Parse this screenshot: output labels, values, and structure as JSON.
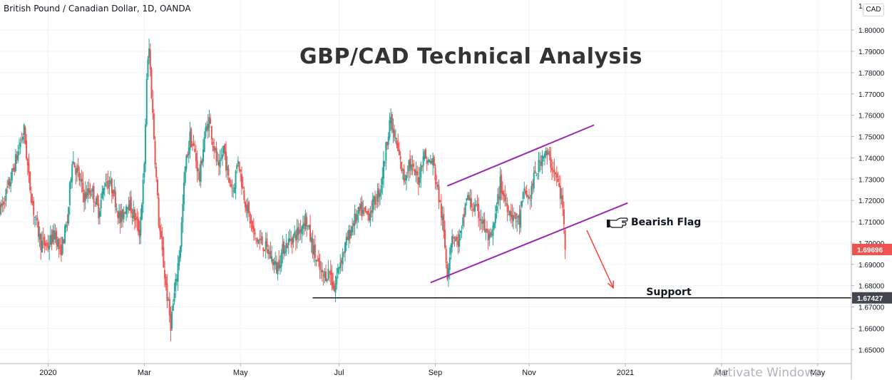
{
  "header": {
    "symbol_label": "British Pound / Canadian Dollar, 1D, OANDA",
    "currency_badge": "CAD",
    "axis_top_partial": "1."
  },
  "watermark": "Activate Windows",
  "colors": {
    "up": "#26a69a",
    "down": "#ef5350",
    "channel": "#9c27b0",
    "support": "#131722",
    "last_price_tag": "#ef5350",
    "support_tag": "#434651",
    "arrow": "#f44336"
  },
  "chart_data": {
    "type": "candlestick",
    "title": "GBP/CAD Technical Analysis",
    "y_ticks": [
      "1.80000",
      "1.79000",
      "1.78000",
      "1.77000",
      "1.76000",
      "1.75000",
      "1.74000",
      "1.73000",
      "1.72000",
      "1.71000",
      "1.70000",
      "1.69000",
      "1.68000",
      "1.67000",
      "1.66000",
      "1.65000"
    ],
    "x_ticks": [
      {
        "label": "2020",
        "x": 0
      },
      {
        "label": "Mar",
        "x": 40
      },
      {
        "label": "May",
        "x": 80
      },
      {
        "label": "Jul",
        "x": 121
      },
      {
        "label": "Sep",
        "x": 161
      },
      {
        "label": "Nov",
        "x": 200
      },
      {
        "label": "2021",
        "x": 240
      },
      {
        "label": "Mar",
        "x": 280
      },
      {
        "label": "May",
        "x": 320
      }
    ],
    "ylim": [
      1.6434,
      1.8141
    ],
    "xlim": [
      -20,
      334
    ],
    "last_price": {
      "label": "1.69696",
      "value": 1.69696
    },
    "support_level": {
      "label": "1.67427",
      "value": 1.67427,
      "x_start": 110,
      "text": "Support"
    },
    "annotation": {
      "text": "Bearish Flag",
      "icon": "pointing-hand-icon"
    },
    "channel_lines": [
      {
        "x1": 159,
        "y1": 1.6814,
        "x2": 241,
        "y2": 1.7188
      },
      {
        "x1": 166,
        "y1": 1.7268,
        "x2": 227,
        "y2": 1.7554
      }
    ],
    "breakdown_arrow": {
      "x1": 224,
      "y1": 1.706,
      "x2": 235,
      "y2": 1.679
    },
    "anchors": [
      [
        -20,
        1.715
      ],
      [
        -16,
        1.728
      ],
      [
        -12,
        1.745
      ],
      [
        -10,
        1.753
      ],
      [
        -8,
        1.73
      ],
      [
        -6,
        1.715
      ],
      [
        -3,
        1.7
      ],
      [
        0,
        1.699
      ],
      [
        3,
        1.705
      ],
      [
        5,
        1.695
      ],
      [
        8,
        1.71
      ],
      [
        10,
        1.74
      ],
      [
        13,
        1.73
      ],
      [
        15,
        1.722
      ],
      [
        18,
        1.725
      ],
      [
        21,
        1.715
      ],
      [
        24,
        1.73
      ],
      [
        27,
        1.725
      ],
      [
        30,
        1.71
      ],
      [
        33,
        1.72
      ],
      [
        36,
        1.712
      ],
      [
        38,
        1.705
      ],
      [
        40,
        1.735
      ],
      [
        41,
        1.778
      ],
      [
        42,
        1.791
      ],
      [
        44,
        1.75
      ],
      [
        46,
        1.71
      ],
      [
        48,
        1.69
      ],
      [
        50,
        1.67
      ],
      [
        51,
        1.662
      ],
      [
        53,
        1.68
      ],
      [
        55,
        1.7
      ],
      [
        57,
        1.735
      ],
      [
        59,
        1.75
      ],
      [
        61,
        1.742
      ],
      [
        63,
        1.73
      ],
      [
        65,
        1.75
      ],
      [
        67,
        1.758
      ],
      [
        69,
        1.745
      ],
      [
        71,
        1.733
      ],
      [
        73,
        1.745
      ],
      [
        75,
        1.73
      ],
      [
        77,
        1.725
      ],
      [
        79,
        1.74
      ],
      [
        81,
        1.725
      ],
      [
        83,
        1.715
      ],
      [
        86,
        1.702
      ],
      [
        89,
        1.7
      ],
      [
        92,
        1.695
      ],
      [
        95,
        1.688
      ],
      [
        98,
        1.698
      ],
      [
        101,
        1.702
      ],
      [
        104,
        1.705
      ],
      [
        107,
        1.712
      ],
      [
        110,
        1.698
      ],
      [
        112,
        1.69
      ],
      [
        114,
        1.684
      ],
      [
        117,
        1.687
      ],
      [
        119,
        1.678
      ],
      [
        121,
        1.69
      ],
      [
        124,
        1.7
      ],
      [
        127,
        1.71
      ],
      [
        130,
        1.715
      ],
      [
        133,
        1.713
      ],
      [
        136,
        1.72
      ],
      [
        138,
        1.725
      ],
      [
        140,
        1.74
      ],
      [
        142,
        1.758
      ],
      [
        144,
        1.75
      ],
      [
        146,
        1.74
      ],
      [
        148,
        1.73
      ],
      [
        150,
        1.738
      ],
      [
        152,
        1.733
      ],
      [
        154,
        1.73
      ],
      [
        156,
        1.742
      ],
      [
        158,
        1.738
      ],
      [
        160,
        1.738
      ],
      [
        162,
        1.725
      ],
      [
        164,
        1.71
      ],
      [
        166,
        1.686
      ],
      [
        168,
        1.705
      ],
      [
        170,
        1.7
      ],
      [
        172,
        1.705
      ],
      [
        174,
        1.722
      ],
      [
        176,
        1.718
      ],
      [
        178,
        1.715
      ],
      [
        180,
        1.712
      ],
      [
        182,
        1.705
      ],
      [
        184,
        1.7
      ],
      [
        186,
        1.712
      ],
      [
        188,
        1.728
      ],
      [
        190,
        1.72
      ],
      [
        192,
        1.715
      ],
      [
        194,
        1.712
      ],
      [
        196,
        1.71
      ],
      [
        198,
        1.725
      ],
      [
        200,
        1.72
      ],
      [
        202,
        1.73
      ],
      [
        204,
        1.736
      ],
      [
        206,
        1.743
      ],
      [
        208,
        1.74
      ],
      [
        210,
        1.735
      ],
      [
        212,
        1.728
      ],
      [
        214,
        1.717
      ],
      [
        215,
        1.697
      ]
    ]
  }
}
